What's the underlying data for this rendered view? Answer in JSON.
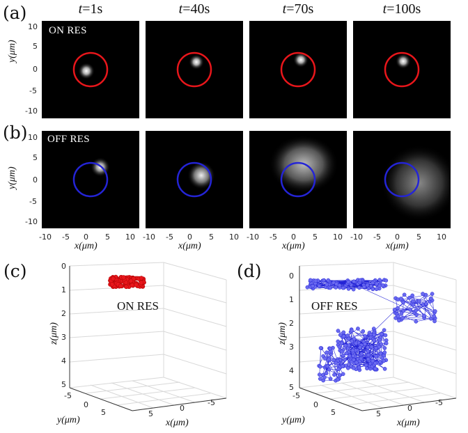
{
  "panels": {
    "a": "(a)",
    "b": "(b)",
    "c": "(c)",
    "d": "(d)"
  },
  "times": [
    "1s",
    "40s",
    "70s",
    "100s"
  ],
  "time_prefix": "t",
  "labels": {
    "on_res": "ON RES",
    "off_res": "OFF RES"
  },
  "axes2d": {
    "ylabel": "y(μm)",
    "xlabel": "x(μm)",
    "yticks": [
      "10",
      "5",
      "0",
      "-5",
      "-10"
    ],
    "xticks": [
      "-10",
      "-5",
      "0",
      "5",
      "10"
    ]
  },
  "axes3d": {
    "zlabel": "z(μm)",
    "ylabel": "y(μm)",
    "xlabel": "x(μm)",
    "zticks": [
      "0",
      "1",
      "2",
      "3",
      "4",
      "5"
    ],
    "yticks": [
      "-5",
      "0",
      "5"
    ],
    "xticks": [
      "5",
      "0",
      "-5"
    ]
  },
  "colors": {
    "on": "#e8161b",
    "off": "#2424d6"
  }
}
